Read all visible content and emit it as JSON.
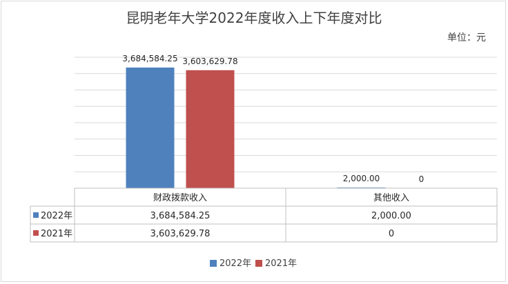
{
  "chart_data": {
    "type": "bar",
    "title": "昆明老年大学2022年度收入上下年度对比",
    "unit": "单位：元",
    "categories": [
      "财政拨款收入",
      "其他收入"
    ],
    "series": [
      {
        "name": "2022年",
        "color": "#4f81bd",
        "values": [
          3684584.25,
          2000.0
        ],
        "labels": [
          "3,684,584.25",
          "2,000.00"
        ]
      },
      {
        "name": "2021年",
        "color": "#c0504d",
        "values": [
          3603629.78,
          0
        ],
        "labels": [
          "3,603,629.78",
          "0"
        ]
      }
    ],
    "ylim": [
      0,
      4000000
    ],
    "grid": true,
    "data_table": true,
    "legend_position": "bottom"
  }
}
